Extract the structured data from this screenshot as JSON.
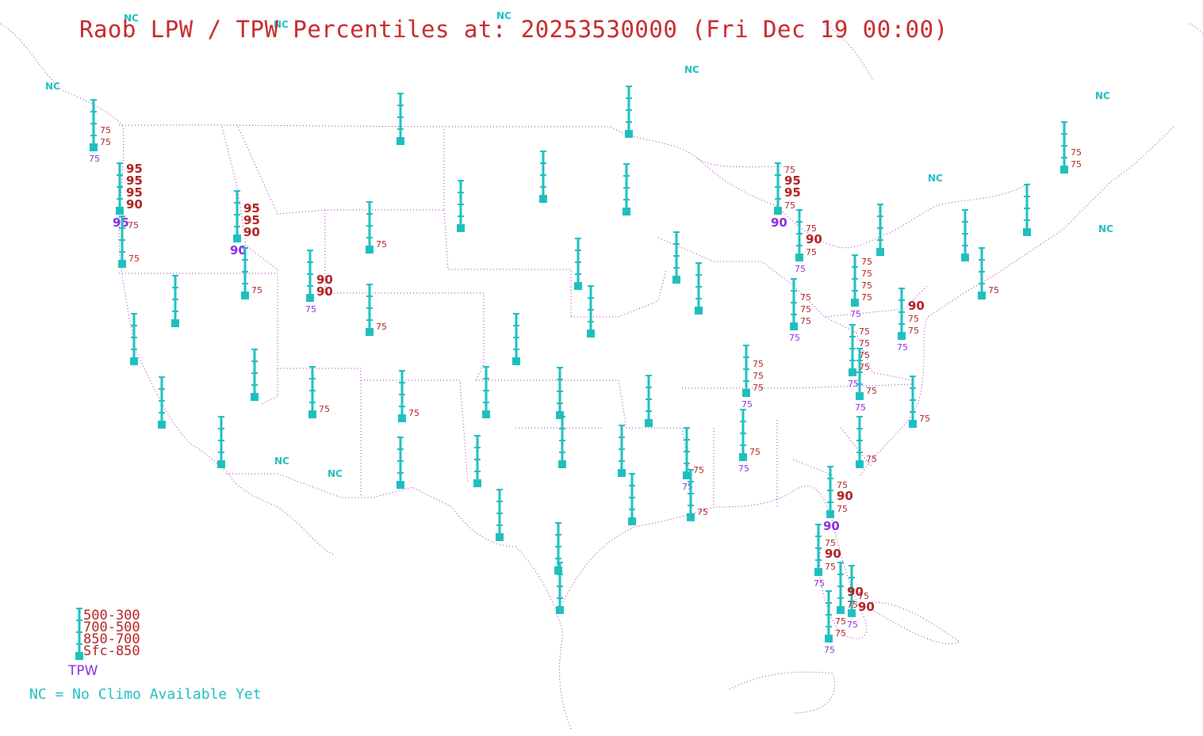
{
  "title": "Raob LPW / TPW Percentiles at: 20253530000 (Fri Dec 19 00:00)",
  "colors": {
    "station": "#1fbfbf",
    "percentile": "#b02020",
    "tpw": "#8a2be2",
    "border": "#a020c0",
    "title": "#c8282a"
  },
  "legend": {
    "levels": [
      "500-300",
      "700-500",
      "850-700",
      "Sfc-850"
    ],
    "tpw_label": "TPW"
  },
  "note": "NC = No Climo Available Yet",
  "nc_label": "NC",
  "stations": [
    {
      "id": "s01",
      "labels": [
        "75",
        "75"
      ],
      "tpw": "75"
    },
    {
      "id": "s02",
      "labels": [
        "95",
        "95",
        "95",
        "90"
      ],
      "tpw": "95",
      "labels2": [
        "75"
      ]
    },
    {
      "id": "s03",
      "labels": [
        "75"
      ]
    },
    {
      "id": "s04",
      "labels": []
    },
    {
      "id": "s05",
      "labels": []
    },
    {
      "id": "s06",
      "labels": []
    },
    {
      "id": "s07",
      "labels": [
        "95",
        "95",
        "90"
      ],
      "tpw": "90"
    },
    {
      "id": "s08",
      "labels": [
        "75"
      ]
    },
    {
      "id": "s09",
      "labels": [
        "90",
        "90"
      ],
      "tpw": "75"
    },
    {
      "id": "s10",
      "labels": []
    },
    {
      "id": "s11",
      "labels": [
        "75"
      ]
    },
    {
      "id": "s12",
      "labels": [
        "75"
      ]
    },
    {
      "id": "s13",
      "labels": []
    },
    {
      "id": "s14",
      "labels": [
        "75"
      ]
    },
    {
      "id": "s15",
      "labels": [
        "75"
      ]
    },
    {
      "id": "s16",
      "labels": []
    },
    {
      "id": "s17",
      "labels": []
    },
    {
      "id": "s18",
      "labels": []
    },
    {
      "id": "s19",
      "labels": []
    },
    {
      "id": "s20",
      "labels": []
    },
    {
      "id": "s21",
      "labels": []
    },
    {
      "id": "s22",
      "labels": []
    },
    {
      "id": "s23",
      "labels": []
    },
    {
      "id": "s24",
      "labels": []
    },
    {
      "id": "s25",
      "labels": []
    },
    {
      "id": "s26",
      "labels": []
    },
    {
      "id": "s27",
      "labels": []
    },
    {
      "id": "s28",
      "labels": []
    },
    {
      "id": "s29",
      "labels": []
    },
    {
      "id": "s30",
      "labels": [
        "75",
        "75"
      ]
    },
    {
      "id": "s31",
      "labels": [
        "75",
        "95",
        "95",
        "75"
      ],
      "tpw": "90"
    },
    {
      "id": "s32",
      "labels": [
        "75",
        "90",
        "75"
      ],
      "tpw": "75"
    },
    {
      "id": "s33",
      "labels": [
        "75",
        "75",
        "75"
      ],
      "tpw": "75"
    },
    {
      "id": "s34",
      "labels": [
        "75",
        "75",
        "75",
        "75"
      ],
      "tpw": "75"
    },
    {
      "id": "s35",
      "labels": []
    },
    {
      "id": "s36",
      "labels": [
        "90",
        "75",
        "75"
      ],
      "tpw": "75"
    },
    {
      "id": "s37",
      "labels": [
        "75"
      ]
    },
    {
      "id": "s38",
      "labels": []
    },
    {
      "id": "s39",
      "labels": []
    },
    {
      "id": "s40",
      "labels": [
        "75"
      ]
    },
    {
      "id": "s41",
      "labels": [
        "75",
        "75",
        "75"
      ],
      "tpw": "75"
    },
    {
      "id": "s42",
      "labels": [
        "75"
      ],
      "tpw": "75"
    },
    {
      "id": "s43",
      "labels": [
        "75"
      ],
      "tpw": "75"
    },
    {
      "id": "s44",
      "labels": [
        "75"
      ]
    },
    {
      "id": "s45",
      "labels": [
        "75",
        "75",
        "75",
        "75"
      ],
      "tpw": "75"
    },
    {
      "id": "s46",
      "labels": [
        "75"
      ],
      "tpw": "75"
    },
    {
      "id": "s47",
      "labels": [
        "75"
      ]
    },
    {
      "id": "s48",
      "labels": [
        "75",
        "90",
        "75"
      ],
      "tpw": "90"
    },
    {
      "id": "s49",
      "labels": [
        "75",
        "90",
        "75"
      ],
      "tpw": "75"
    },
    {
      "id": "s50",
      "labels": [
        "75",
        "75"
      ],
      "tpw": "75"
    },
    {
      "id": "s51",
      "labels": [
        "75",
        "90"
      ],
      "tpw": "75"
    },
    {
      "id": "s52",
      "labels": [
        "90",
        "75"
      ]
    },
    {
      "id": "s53",
      "labels": []
    },
    {
      "id": "s54",
      "labels": []
    },
    {
      "id": "s55",
      "labels": []
    },
    {
      "id": "s56",
      "labels": []
    },
    {
      "id": "s57",
      "labels": []
    },
    {
      "id": "s58",
      "labels": []
    },
    {
      "id": "s59",
      "labels": []
    }
  ]
}
